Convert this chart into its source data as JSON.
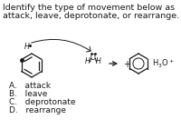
{
  "title_line1": "Identify the type of movement below as",
  "title_line2": "attack, leave, deprotonate, or rearrange.",
  "options": [
    "A.   attack",
    "B.   leave",
    "C.   deprotonate",
    "D.   rearrange"
  ],
  "bg_color": "#ffffff",
  "text_color": "#1a1a1a",
  "fs_title": 6.8,
  "fs_opt": 6.5,
  "fs_chem": 6.0
}
